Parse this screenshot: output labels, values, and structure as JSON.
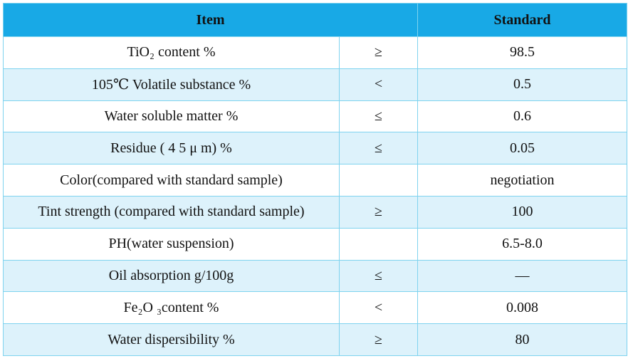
{
  "table": {
    "headers": {
      "item": "Item",
      "standard": "Standard"
    },
    "rows": [
      {
        "item": "TiO₂ content %",
        "op": "≥",
        "value": "98.5"
      },
      {
        "item": "105℃ Volatile substance %",
        "op": "<",
        "value": "0.5"
      },
      {
        "item": "Water soluble matter %",
        "op": "≤",
        "value": "0.6"
      },
      {
        "item": "Residue ( 4 5 μ m) %",
        "op": "≤",
        "value": "0.05"
      },
      {
        "item": "Color(compared with standard sample)",
        "op": "",
        "value": "negotiation"
      },
      {
        "item": "Tint strength  (compared with standard sample)",
        "op": "≥",
        "value": "100"
      },
      {
        "item": "PH(water suspension)",
        "op": "",
        "value": "6.5-8.0"
      },
      {
        "item": "Oil absorption g/100g",
        "op": "≤",
        "value": "—"
      },
      {
        "item": "Fe₂O ₃content  %",
        "op": "<",
        "value": "0.008"
      },
      {
        "item": "Water dispersibility %",
        "op": "≥",
        "value": "80"
      }
    ]
  },
  "colors": {
    "header_bg": "#18a9e6",
    "row_shade": "#ddf2fb",
    "border": "#7fd3ef"
  }
}
